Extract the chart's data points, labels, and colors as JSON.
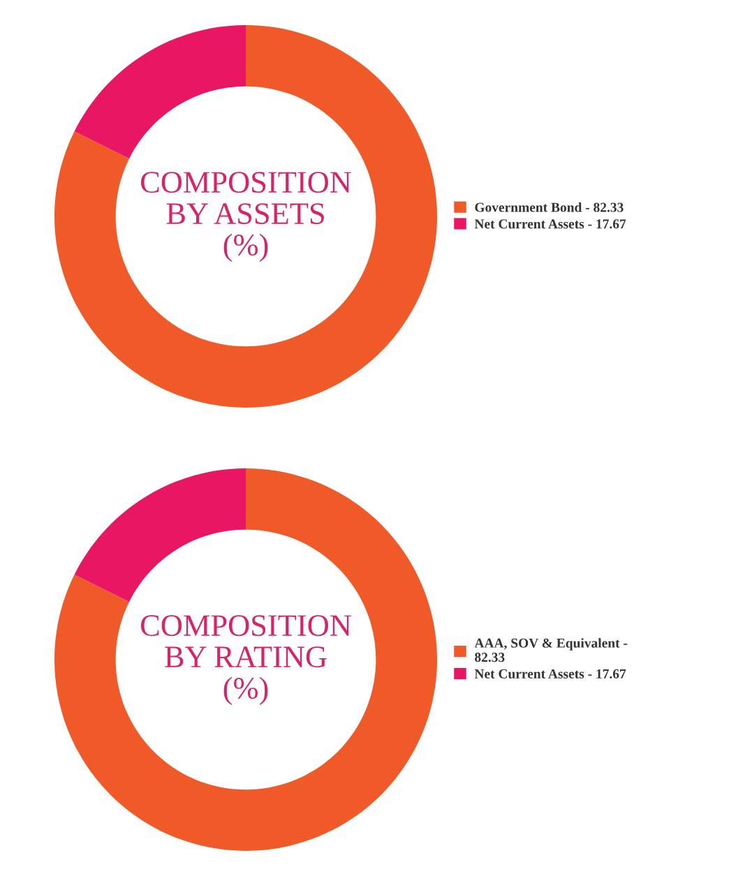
{
  "chart_data": [
    {
      "type": "donut",
      "title": "COMPOSITION BY ASSETS (%)",
      "categories": [
        "Government Bond - 82.33",
        "Net Current Assets - 17.67"
      ],
      "values": [
        82.33,
        17.67
      ],
      "colors": [
        "#f05a28",
        "#e91763"
      ],
      "legend": "right"
    },
    {
      "type": "donut",
      "title": "COMPOSITION BY RATING (%)",
      "categories": [
        "AAA, SOV & Equivalent - 82.33",
        "Net Current Assets - 17.67"
      ],
      "values": [
        82.33,
        17.67
      ],
      "colors": [
        "#f05a28",
        "#e91763"
      ],
      "legend": "right"
    }
  ]
}
